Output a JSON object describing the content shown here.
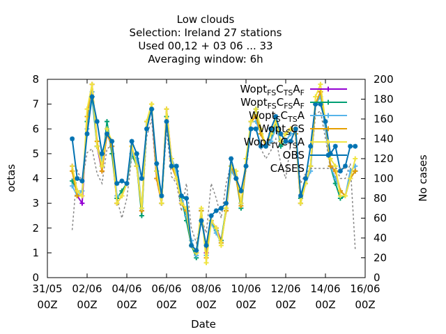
{
  "chart_data": {
    "type": "line",
    "title_lines": [
      "Low clouds",
      "Selection: Ireland      27 stations",
      "Used  00,12  + 03 06 ... 33",
      "Averaging window:  6h"
    ],
    "xlabel": "Date",
    "ylabel": "octas",
    "y2label": "No cases",
    "x_ticks": [
      {
        "date": "31/05",
        "time": "00Z"
      },
      {
        "date": "02/06",
        "time": "00Z"
      },
      {
        "date": "04/06",
        "time": "00Z"
      },
      {
        "date": "06/06",
        "time": "00Z"
      },
      {
        "date": "08/06",
        "time": "00Z"
      },
      {
        "date": "10/06",
        "time": "00Z"
      },
      {
        "date": "12/06",
        "time": "00Z"
      },
      {
        "date": "14/06",
        "time": "00Z"
      },
      {
        "date": "16/06",
        "time": "00Z"
      }
    ],
    "xlim": [
      "2016-05-31T00:00Z",
      "2016-06-16T00:00Z"
    ],
    "ylim": [
      0,
      8
    ],
    "y_ticks": [
      0,
      1,
      2,
      3,
      4,
      5,
      6,
      7,
      8
    ],
    "y2lim": [
      0,
      200
    ],
    "y2_ticks": [
      0,
      20,
      40,
      60,
      80,
      100,
      120,
      140,
      160,
      180,
      200
    ],
    "grid": false,
    "legend_position": "top-right",
    "x": [
      "2016-06-01T06:00Z",
      "2016-06-01T12:00Z",
      "2016-06-01T18:00Z",
      "2016-06-02T00:00Z",
      "2016-06-02T06:00Z",
      "2016-06-02T12:00Z",
      "2016-06-02T18:00Z",
      "2016-06-03T00:00Z",
      "2016-06-03T06:00Z",
      "2016-06-03T12:00Z",
      "2016-06-03T18:00Z",
      "2016-06-04T00:00Z",
      "2016-06-04T06:00Z",
      "2016-06-04T12:00Z",
      "2016-06-04T18:00Z",
      "2016-06-05T00:00Z",
      "2016-06-05T06:00Z",
      "2016-06-05T12:00Z",
      "2016-06-05T18:00Z",
      "2016-06-06T00:00Z",
      "2016-06-06T06:00Z",
      "2016-06-06T12:00Z",
      "2016-06-06T18:00Z",
      "2016-06-07T00:00Z",
      "2016-06-07T06:00Z",
      "2016-06-07T12:00Z",
      "2016-06-07T18:00Z",
      "2016-06-08T00:00Z",
      "2016-06-08T06:00Z",
      "2016-06-08T12:00Z",
      "2016-06-08T18:00Z",
      "2016-06-09T00:00Z",
      "2016-06-09T06:00Z",
      "2016-06-09T12:00Z",
      "2016-06-09T18:00Z",
      "2016-06-10T00:00Z",
      "2016-06-10T06:00Z",
      "2016-06-10T12:00Z",
      "2016-06-10T18:00Z",
      "2016-06-11T00:00Z",
      "2016-06-11T06:00Z",
      "2016-06-11T12:00Z",
      "2016-06-11T18:00Z",
      "2016-06-12T00:00Z",
      "2016-06-12T06:00Z",
      "2016-06-12T12:00Z",
      "2016-06-12T18:00Z",
      "2016-06-13T00:00Z",
      "2016-06-13T06:00Z",
      "2016-06-13T12:00Z",
      "2016-06-13T18:00Z",
      "2016-06-14T00:00Z",
      "2016-06-14T06:00Z",
      "2016-06-14T12:00Z",
      "2016-06-14T18:00Z",
      "2016-06-15T00:00Z",
      "2016-06-15T06:00Z",
      "2016-06-15T12:00Z"
    ],
    "series": [
      {
        "label_main": "Wopt",
        "label_sub": "FS",
        "label_pre": "C",
        "label_sub2": "TS",
        "label_post": "A",
        "label_sub3": "F",
        "color": "#9400d3",
        "marker": "plus",
        "axis": "y",
        "values": [
          4.5,
          3.3,
          3.0,
          6.5,
          7.8,
          5.3,
          4.3,
          5.8,
          5.3,
          3.0,
          3.3,
          3.8,
          5.3,
          4.5,
          2.7,
          6.3,
          6.8,
          4.0,
          3.0,
          6.8,
          4.8,
          4.0,
          3.0,
          2.7,
          1.3,
          1.0,
          2.7,
          1.0,
          2.3,
          2.0,
          1.5,
          2.7,
          4.5,
          4.0,
          3.0,
          4.5,
          6.3,
          6.5,
          5.8,
          5.3,
          5.8,
          6.3,
          5.5,
          5.8,
          6.0,
          5.8,
          3.0,
          3.8,
          4.5,
          7.0,
          7.5,
          6.3,
          4.5,
          4.3,
          3.5,
          3.3,
          4.0,
          4.3
        ]
      },
      {
        "label_main": "Wopt",
        "label_sub": "FS",
        "label_pre": "C",
        "label_sub2": "FS",
        "label_post": "A",
        "label_sub3": "F",
        "color": "#009e73",
        "marker": "plus",
        "axis": "y",
        "values": [
          3.9,
          3.5,
          3.3,
          6.3,
          7.3,
          5.3,
          4.5,
          6.3,
          5.0,
          3.2,
          3.5,
          3.8,
          5.0,
          4.5,
          2.5,
          6.3,
          6.8,
          4.3,
          3.0,
          6.5,
          4.8,
          4.3,
          3.2,
          2.3,
          1.3,
          0.8,
          2.7,
          0.9,
          2.3,
          1.9,
          1.5,
          2.8,
          4.5,
          4.0,
          2.8,
          4.5,
          6.3,
          6.8,
          5.8,
          5.3,
          5.5,
          6.3,
          5.3,
          5.5,
          5.8,
          5.8,
          3.2,
          3.8,
          4.5,
          7.0,
          7.3,
          6.3,
          4.5,
          3.8,
          3.2,
          3.3,
          4.0,
          4.3
        ]
      },
      {
        "label_main": "Wopt",
        "label_sub": "S",
        "label_pre": "C",
        "label_sub2": "TS",
        "label_post": "A",
        "label_sub3": "",
        "color": "#56b4e9",
        "marker": "plus",
        "axis": "y",
        "values": [
          3.7,
          3.3,
          3.5,
          6.0,
          7.5,
          5.3,
          4.8,
          6.0,
          5.3,
          3.3,
          3.3,
          3.8,
          5.0,
          4.8,
          2.8,
          6.0,
          6.8,
          4.3,
          3.3,
          6.3,
          4.8,
          4.3,
          3.3,
          2.5,
          1.5,
          0.9,
          2.7,
          0.9,
          2.2,
          1.8,
          1.4,
          2.7,
          4.3,
          4.0,
          3.0,
          4.5,
          6.3,
          6.3,
          5.8,
          5.3,
          5.5,
          6.0,
          5.5,
          5.5,
          5.8,
          5.8,
          3.0,
          3.8,
          4.3,
          7.0,
          7.3,
          6.0,
          4.5,
          4.0,
          3.5,
          3.3,
          4.3,
          4.5
        ]
      },
      {
        "label_main": "Wopt",
        "label_sub": "S",
        "label_pre": "C",
        "label_sub2": "",
        "label_post": "S",
        "label_sub3": "",
        "color": "#e69f00",
        "marker": "plus",
        "axis": "y",
        "values": [
          4.3,
          3.3,
          3.3,
          6.5,
          7.8,
          5.5,
          4.3,
          5.8,
          5.3,
          3.0,
          3.3,
          3.8,
          5.3,
          4.5,
          2.7,
          6.3,
          7.0,
          4.0,
          3.0,
          6.8,
          4.5,
          4.0,
          3.0,
          2.7,
          1.3,
          1.0,
          2.7,
          0.8,
          2.3,
          2.0,
          1.4,
          2.7,
          4.5,
          4.0,
          2.9,
          4.5,
          6.3,
          6.5,
          5.8,
          5.3,
          5.8,
          6.3,
          5.5,
          5.8,
          6.0,
          5.8,
          3.0,
          3.8,
          4.5,
          7.0,
          7.5,
          6.3,
          4.5,
          4.3,
          3.5,
          3.3,
          4.0,
          4.3
        ]
      },
      {
        "label_main": "Wopt",
        "label_sub": "TV",
        "label_pre": "C",
        "label_sub2": "TS",
        "label_post": "A",
        "label_sub3": "",
        "color": "#f0e442",
        "marker": "plus",
        "axis": "y",
        "values": [
          4.5,
          3.5,
          3.3,
          6.8,
          7.8,
          5.3,
          4.5,
          6.0,
          5.5,
          3.0,
          3.3,
          3.8,
          5.3,
          4.5,
          2.8,
          6.3,
          7.0,
          4.3,
          3.0,
          6.8,
          4.8,
          4.0,
          3.0,
          2.8,
          1.3,
          1.0,
          2.8,
          0.6,
          2.3,
          2.0,
          1.3,
          2.8,
          4.5,
          4.3,
          3.0,
          4.8,
          6.3,
          6.8,
          6.0,
          5.3,
          5.8,
          6.3,
          5.5,
          5.8,
          6.0,
          6.0,
          3.0,
          3.8,
          4.5,
          7.3,
          7.8,
          6.3,
          4.8,
          4.5,
          3.3,
          3.3,
          4.0,
          4.8
        ]
      },
      {
        "label_main": "OBS",
        "label_sub": "",
        "label_pre": "",
        "label_sub2": "",
        "label_post": "",
        "label_sub3": "",
        "color": "#0072b2",
        "marker": "star",
        "axis": "y",
        "values": [
          5.6,
          4.0,
          3.9,
          5.8,
          7.3,
          6.3,
          5.0,
          5.8,
          5.5,
          3.8,
          3.9,
          3.8,
          5.5,
          5.0,
          4.0,
          6.0,
          6.8,
          4.6,
          3.3,
          6.3,
          4.5,
          4.5,
          3.3,
          3.2,
          1.3,
          1.1,
          2.3,
          1.3,
          2.5,
          2.7,
          2.8,
          3.0,
          4.8,
          4.0,
          3.5,
          4.5,
          6.0,
          6.0,
          5.3,
          5.3,
          6.0,
          6.5,
          5.8,
          5.5,
          5.5,
          6.0,
          3.3,
          4.0,
          5.3,
          7.0,
          7.0,
          6.3,
          5.0,
          5.3,
          4.3,
          4.5,
          5.3,
          5.3
        ]
      },
      {
        "label_main": "CASES",
        "label_sub": "",
        "label_pre": "",
        "label_sub2": "",
        "label_post": "",
        "label_sub3": "",
        "color": "#888888",
        "marker": "none",
        "dash": true,
        "axis": "y2",
        "values": [
          48,
          108,
          97,
          126,
          130,
          105,
          95,
          130,
          133,
          80,
          60,
          80,
          122,
          115,
          67,
          142,
          160,
          98,
          75,
          150,
          102,
          95,
          67,
          95,
          50,
          35,
          60,
          45,
          95,
          80,
          60,
          95,
          115,
          100,
          88,
          108,
          150,
          152,
          130,
          120,
          128,
          140,
          115,
          100,
          135,
          140,
          95,
          105,
          110,
          165,
          168,
          140,
          110,
          112,
          100,
          100,
          115,
          28
        ]
      }
    ]
  }
}
